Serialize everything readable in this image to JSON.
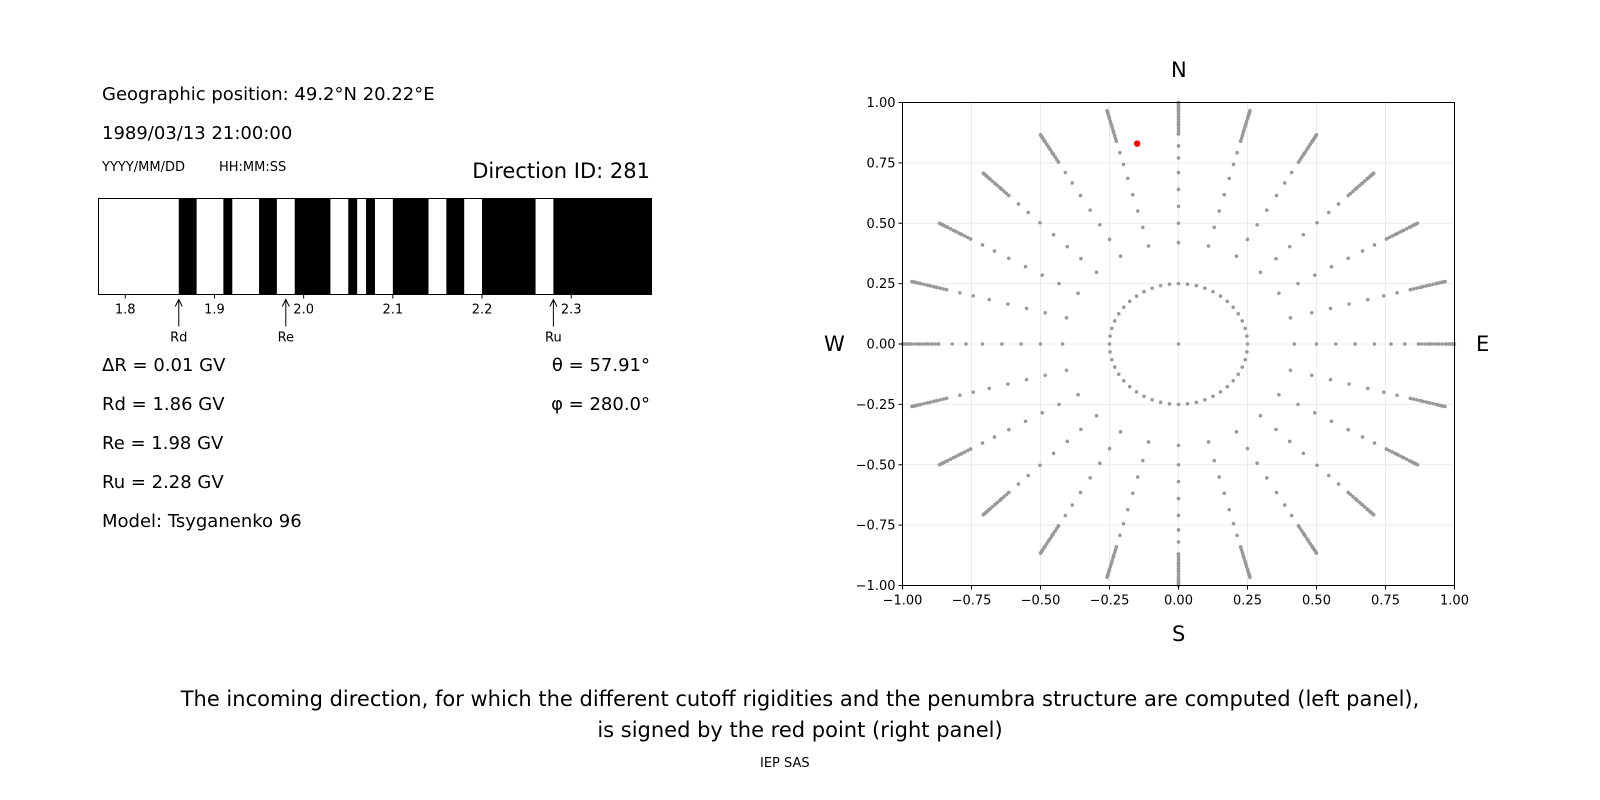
{
  "left_panel": {
    "geo_position": "Geographic position: 49.2°N 20.22°E",
    "datetime": "1989/03/13 21:00:00",
    "date_format": "YYYY/MM/DD",
    "time_format": "HH:MM:SS",
    "direction_id": "Direction ID: 281",
    "delta_r": "ΔR = 0.01 GV",
    "rd": "Rd = 1.86 GV",
    "re": "Re = 1.98 GV",
    "ru": "Ru = 2.28 GV",
    "model": "Model: Tsyganenko 96",
    "theta": "θ = 57.91°",
    "phi": "φ = 280.0°"
  },
  "compass": {
    "north": "N",
    "south": "S",
    "west": "W",
    "east": "E"
  },
  "caption": {
    "line1": "The incoming direction, for which the different cutoff rigidities and the penumbra structure are computed (left panel),",
    "line2": "is signed by the red point (right panel)"
  },
  "footer": "IEP SAS",
  "chart_data": [
    {
      "type": "penumbra-bar",
      "xlim": [
        1.77,
        2.39
      ],
      "ticks": [
        1.8,
        1.9,
        2.0,
        2.1,
        2.2,
        2.3
      ],
      "tick_labels": [
        "1.8",
        "1.9",
        "2.0",
        "2.1",
        "2.2",
        "2.3"
      ],
      "black_segments": [
        [
          1.86,
          1.88
        ],
        [
          1.91,
          1.92
        ],
        [
          1.95,
          1.97
        ],
        [
          1.99,
          2.03
        ],
        [
          2.05,
          2.06
        ],
        [
          2.07,
          2.08
        ],
        [
          2.1,
          2.14
        ],
        [
          2.16,
          2.18
        ],
        [
          2.2,
          2.26
        ],
        [
          2.28,
          2.39
        ]
      ],
      "markers": [
        {
          "label": "Rd",
          "value": 1.86
        },
        {
          "label": "Re",
          "value": 1.98
        },
        {
          "label": "Ru",
          "value": 2.28
        }
      ]
    },
    {
      "type": "scatter",
      "xlim": [
        -1.0,
        1.0
      ],
      "ylim": [
        -1.0,
        1.0
      ],
      "ticks": [
        -1.0,
        -0.75,
        -0.5,
        -0.25,
        0.0,
        0.25,
        0.5,
        0.75,
        1.0
      ],
      "tick_labels": [
        "−1.00",
        "−0.75",
        "−0.50",
        "−0.25",
        "0.00",
        "0.25",
        "0.50",
        "0.75",
        "1.00"
      ],
      "grid": true,
      "grid_directions": "rings of points at 24 azimuths (every 15°), projected hemisphere, radius = sin(zenith)",
      "ring_radii": [
        0.0,
        0.25,
        0.42,
        0.5,
        0.57,
        0.64,
        0.71,
        0.77,
        0.82,
        0.87,
        0.91,
        0.94,
        0.97,
        0.985,
        0.995,
        1.0
      ],
      "dense_radii_start": 0.87,
      "point_color": "#999999",
      "highlight": {
        "x": -0.15,
        "y": 0.83,
        "color": "#ff0000"
      }
    }
  ]
}
